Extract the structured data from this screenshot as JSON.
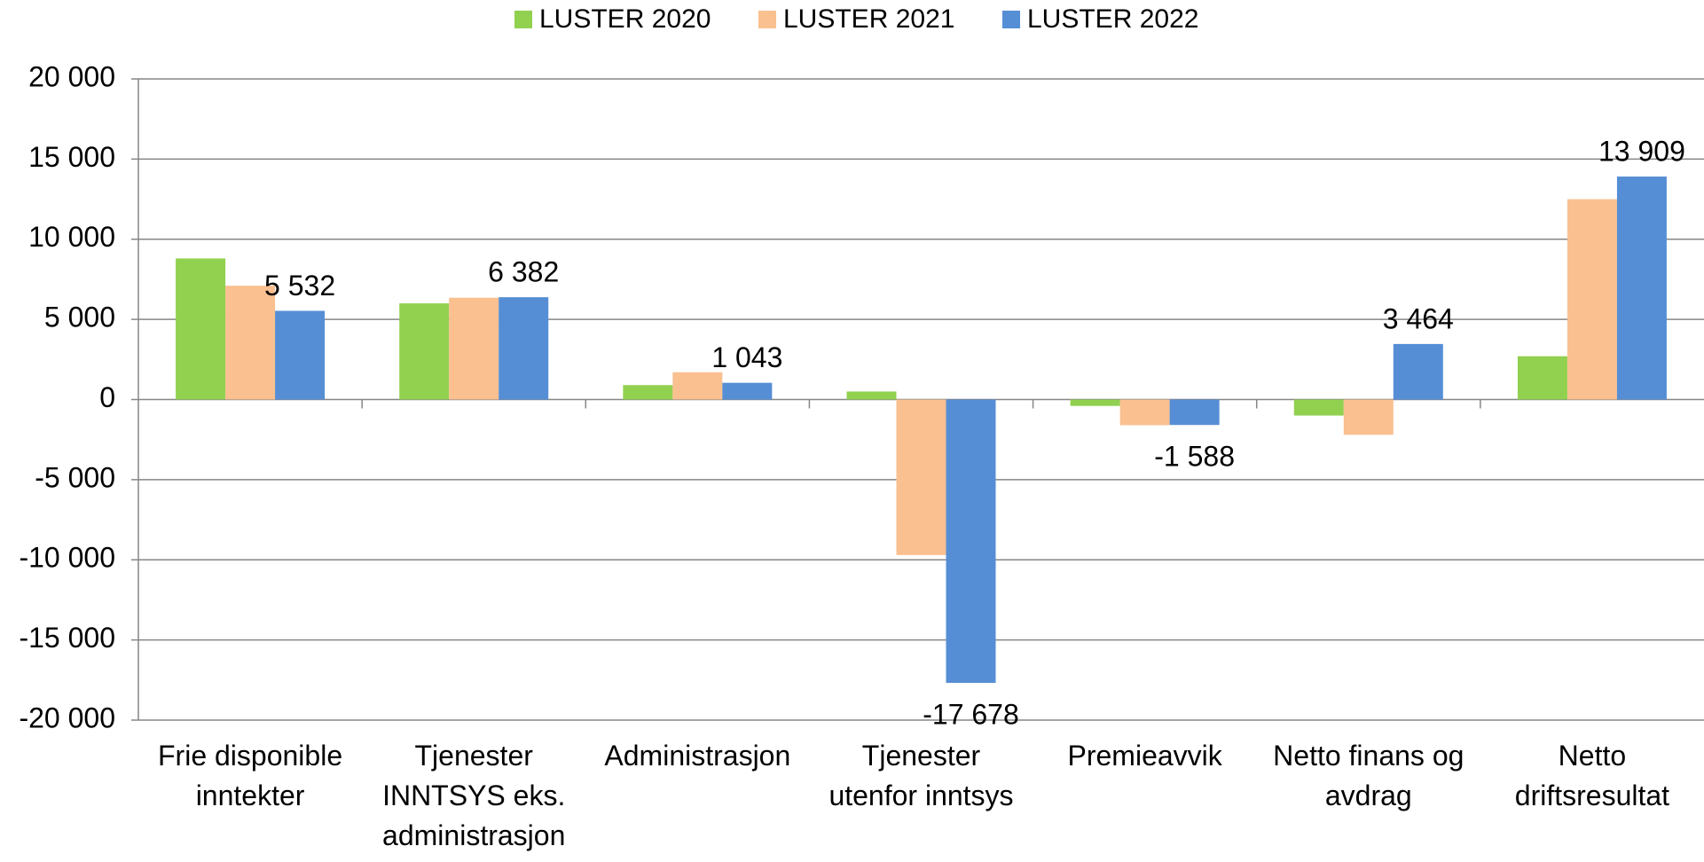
{
  "chart_data": {
    "type": "bar",
    "categories": [
      "Frie disponible inntekter",
      "Tjenester INNTSYS eks. administrasjon",
      "Administrasjon",
      "Tjenester utenfor inntsys",
      "Premieavvik",
      "Netto finans og avdrag",
      "Netto driftsresultat"
    ],
    "series": [
      {
        "name": "LUSTER 2020",
        "color": "#92d050",
        "values": [
          8800,
          6000,
          900,
          500,
          -400,
          -1000,
          2700
        ]
      },
      {
        "name": "LUSTER 2021",
        "color": "#fac090",
        "values": [
          7100,
          6350,
          1700,
          -9700,
          -1600,
          -2200,
          12500
        ]
      },
      {
        "name": "LUSTER 2022",
        "color": "#558ed5",
        "values": [
          5532,
          6382,
          1043,
          -17678,
          -1588,
          3464,
          13909
        ],
        "value_labels": [
          "5 532",
          "6 382",
          "1 043",
          "-17 678",
          "-1 588",
          "3 464",
          "13 909"
        ]
      }
    ],
    "ylim": [
      -20000,
      20000
    ],
    "yticks": [
      {
        "value": -20000,
        "label": "-20 000"
      },
      {
        "value": -15000,
        "label": "-15 000"
      },
      {
        "value": -10000,
        "label": "-10 000"
      },
      {
        "value": -5000,
        "label": "-5 000"
      },
      0,
      {
        "value": 5000,
        "label": "5 000"
      },
      {
        "value": 10000,
        "label": "10 000"
      },
      {
        "value": 15000,
        "label": "15 000"
      },
      {
        "value": 20000,
        "label": "20 000"
      }
    ],
    "grid": true,
    "legend": "top"
  }
}
